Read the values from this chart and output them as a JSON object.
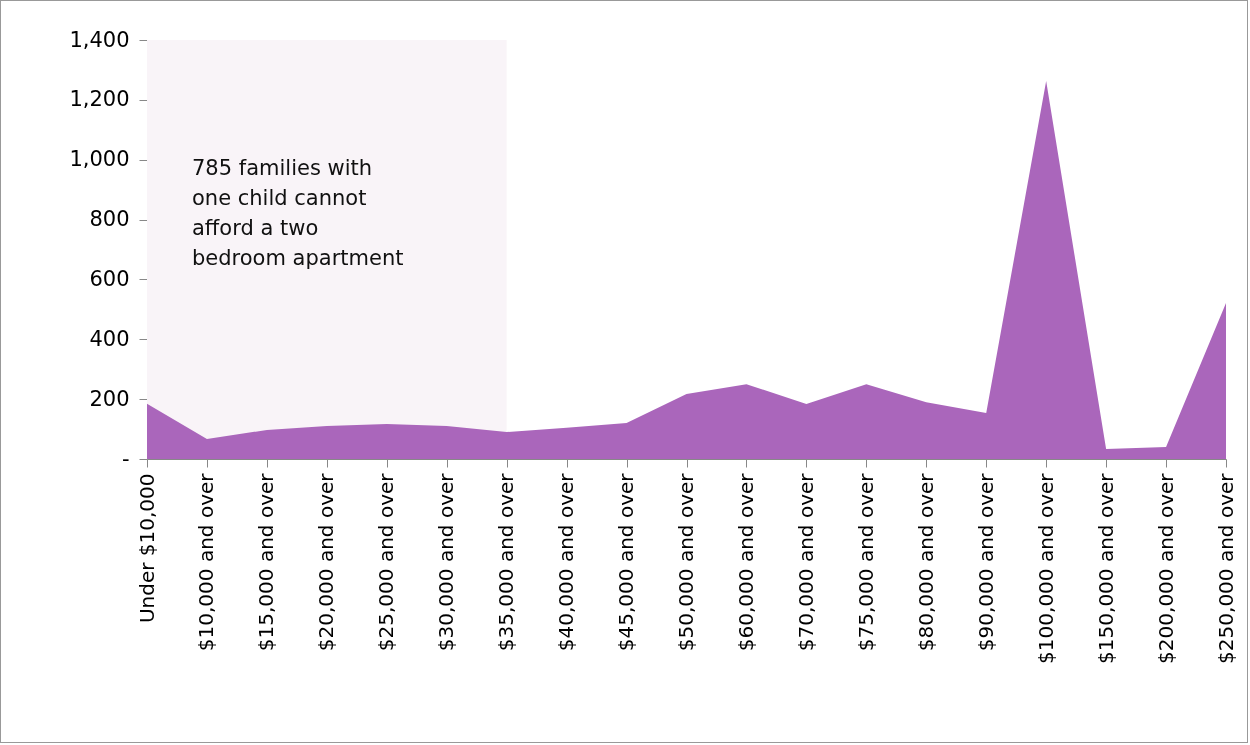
{
  "chart_data": {
    "type": "area",
    "categories": [
      "Under $10,000",
      "$10,000 and over",
      "$15,000 and over",
      "$20,000 and over",
      "$25,000 and over",
      "$30,000 and over",
      "$35,000 and over",
      "$40,000 and over",
      "$45,000 and over",
      "$50,000 and over",
      "$60,000 and over",
      "$70,000 and over",
      "$75,000 and over",
      "$80,000 and over",
      "$90,000 and over",
      "$100,000 and over",
      "$150,000 and over",
      "$200,000 and over",
      "$250,000 and over"
    ],
    "series": [
      {
        "color": "#aa66bb",
        "values": [
          185,
          67,
          97,
          110,
          117,
          110,
          90,
          104,
          120,
          217,
          250,
          184,
          250,
          190,
          154,
          1263,
          33,
          40,
          521
        ]
      }
    ],
    "ylim": [
      0,
      1400
    ],
    "yticks": [
      {
        "value": 0,
        "label": "-"
      },
      200,
      400,
      600,
      800,
      {
        "value": 1000,
        "label": "1,000"
      },
      {
        "value": 1200,
        "label": "1,200"
      },
      {
        "value": 1400,
        "label": "1,400"
      }
    ],
    "bands": [
      {
        "axis": "x",
        "from": "Under $10,000",
        "to": "$35,000 and over",
        "label": "785 families with one child cannot afford a two bedroom apartment",
        "color": "#f9f4f8"
      }
    ],
    "grid": false
  }
}
